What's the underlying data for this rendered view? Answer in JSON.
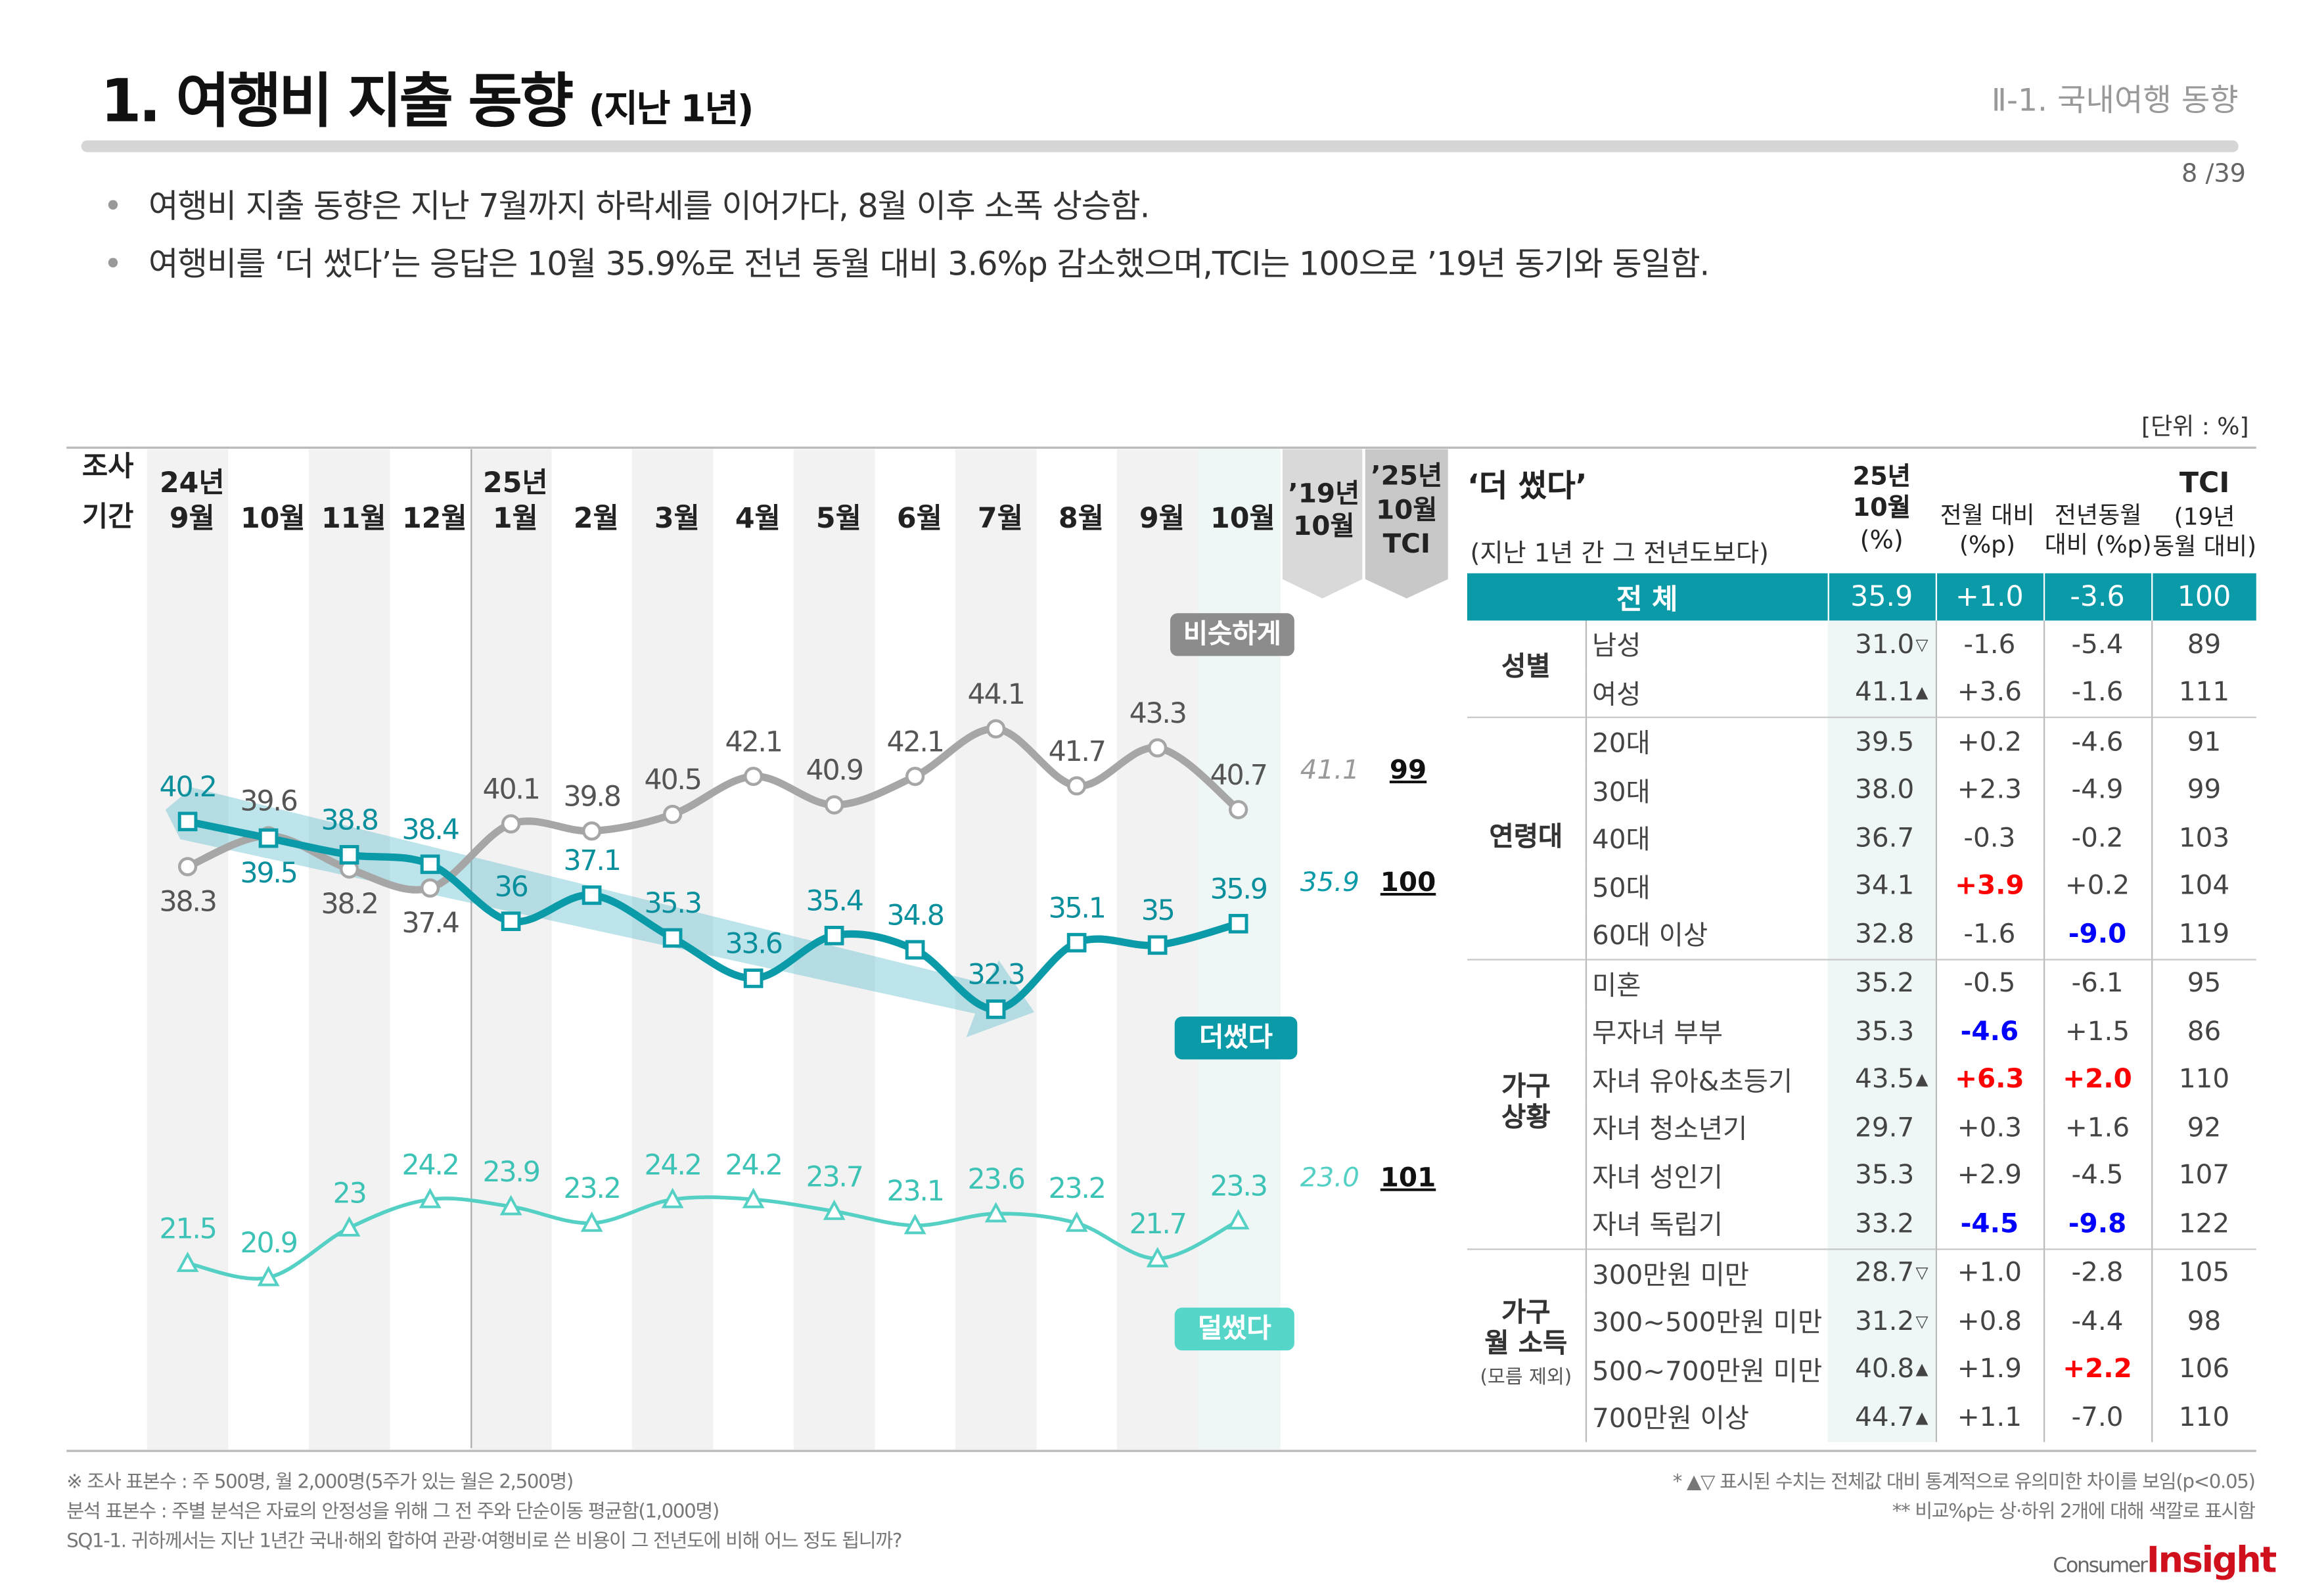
{
  "header": {
    "title": "1. 여행비 지출 동향",
    "title_sub": "(지난 1년)",
    "section": "Ⅱ-1. 국내여행 동향",
    "page": "8 /39"
  },
  "bullets": [
    "여행비 지출 동향은 지난 7월까지 하락세를 이어가다, 8월 이후 소폭 상승함.",
    "여행비를 ‘더 썼다’는 응답은 10월 35.9%로 전년 동월 대비 3.6%p 감소했으며,TCI는 100으로 ’19년 동기와 동일함."
  ],
  "unit": "[단위 : %]",
  "chart_data": {
    "type": "line",
    "period_label_1": "조사",
    "period_label_2": "기간",
    "year_labels": [
      {
        "col": 0,
        "text": "24년"
      },
      {
        "col": 4,
        "text": "25년"
      }
    ],
    "categories": [
      "9월",
      "10월",
      "11월",
      "12월",
      "1월",
      "2월",
      "3월",
      "4월",
      "5월",
      "6월",
      "7월",
      "8월",
      "9월",
      "10월"
    ],
    "series": [
      {
        "name": "비슷하게",
        "color": "#a6a6a6",
        "marker": "circle",
        "values": [
          38.3,
          39.6,
          38.2,
          37.4,
          40.1,
          39.8,
          40.5,
          42.1,
          40.9,
          42.1,
          44.1,
          41.7,
          43.3,
          40.7
        ],
        "ref_2019": "41.1",
        "tci": "99"
      },
      {
        "name": "더 썼다",
        "color": "#0a9aa8",
        "marker": "square",
        "values": [
          40.2,
          39.5,
          38.8,
          38.4,
          36.0,
          37.1,
          35.3,
          33.6,
          35.4,
          34.8,
          32.3,
          35.1,
          35.0,
          35.9
        ],
        "ref_2019": "35.9",
        "tci": "100"
      },
      {
        "name": "덜 썼다",
        "color": "#55d0c4",
        "marker": "triangle",
        "values": [
          21.5,
          20.9,
          23.0,
          24.2,
          23.9,
          23.2,
          24.2,
          24.2,
          23.7,
          23.1,
          23.6,
          23.2,
          21.7,
          23.3
        ],
        "ref_2019": "23.0",
        "tci": "101"
      }
    ],
    "badges": {
      "similar": "비슷하게",
      "more": "더썼다",
      "less": "덜썼다"
    },
    "col_2019": [
      "’19년",
      "10월"
    ],
    "col_tci": [
      "’25년",
      "10월",
      "TCI"
    ],
    "trend": "downward trend arrow from 24년 9월 to 25년 7월"
  },
  "table": {
    "title": "‘더 썼다’",
    "subtitle": "(지난 1년 간 그 전년도보다)",
    "col_pct": [
      "25년",
      "10월",
      "(%)"
    ],
    "col_mom": [
      "전월 대비",
      "(%p)"
    ],
    "col_yoy": [
      "전년동월",
      "대비 (%p)"
    ],
    "col_tci": [
      "TCI",
      "(19년",
      "동월 대비)"
    ],
    "total": {
      "label": "전  체",
      "pct": "35.9",
      "mom": "+1.0",
      "yoy": "-3.6",
      "tci": "100"
    },
    "groups": [
      {
        "name": "성별",
        "note": "",
        "rows": [
          {
            "label": "남성",
            "pct": "31.0",
            "mark": "▽",
            "mom": "-1.6",
            "yoy": "-5.4",
            "tci": "89"
          },
          {
            "label": "여성",
            "pct": "41.1",
            "mark": "▲",
            "mom": "+3.6",
            "yoy": "-1.6",
            "tci": "111"
          }
        ]
      },
      {
        "name": "연령대",
        "note": "",
        "rows": [
          {
            "label": "20대",
            "pct": "39.5",
            "mark": "",
            "mom": "+0.2",
            "yoy": "-4.6",
            "tci": "91"
          },
          {
            "label": "30대",
            "pct": "38.0",
            "mark": "",
            "mom": "+2.3",
            "yoy": "-4.9",
            "tci": "99"
          },
          {
            "label": "40대",
            "pct": "36.7",
            "mark": "",
            "mom": "-0.3",
            "yoy": "-0.2",
            "tci": "103"
          },
          {
            "label": "50대",
            "pct": "34.1",
            "mark": "",
            "mom": "+3.9",
            "mom_color": "#ff0000",
            "yoy": "+0.2",
            "tci": "104"
          },
          {
            "label": "60대 이상",
            "pct": "32.8",
            "mark": "",
            "mom": "-1.6",
            "yoy": "-9.0",
            "yoy_color": "#0000ff",
            "tci": "119"
          }
        ]
      },
      {
        "name": "가구\n상황",
        "note": "",
        "rows": [
          {
            "label": "미혼",
            "pct": "35.2",
            "mark": "",
            "mom": "-0.5",
            "yoy": "-6.1",
            "tci": "95"
          },
          {
            "label": "무자녀 부부",
            "pct": "35.3",
            "mark": "",
            "mom": "-4.6",
            "mom_color": "#0000ff",
            "yoy": "+1.5",
            "tci": "86"
          },
          {
            "label": "자녀 유아&초등기",
            "pct": "43.5",
            "mark": "▲",
            "mom": "+6.3",
            "mom_color": "#ff0000",
            "yoy": "+2.0",
            "yoy_color": "#ff0000",
            "tci": "110"
          },
          {
            "label": "자녀 청소년기",
            "pct": "29.7",
            "mark": "",
            "mom": "+0.3",
            "yoy": "+1.6",
            "tci": "92"
          },
          {
            "label": "자녀 성인기",
            "pct": "35.3",
            "mark": "",
            "mom": "+2.9",
            "yoy": "-4.5",
            "tci": "107"
          },
          {
            "label": "자녀 독립기",
            "pct": "33.2",
            "mark": "",
            "mom": "-4.5",
            "mom_color": "#0000ff",
            "yoy": "-9.8",
            "yoy_color": "#0000ff",
            "tci": "122"
          }
        ]
      },
      {
        "name": "가구\n월 소득",
        "note": "(모름 제외)",
        "rows": [
          {
            "label": "300만원 미만",
            "pct": "28.7",
            "mark": "▽",
            "mom": "+1.0",
            "yoy": "-2.8",
            "tci": "105"
          },
          {
            "label": "300~500만원 미만",
            "pct": "31.2",
            "mark": "▽",
            "mom": "+0.8",
            "yoy": "-4.4",
            "tci": "98"
          },
          {
            "label": "500~700만원 미만",
            "pct": "40.8",
            "mark": "▲",
            "mom": "+1.9",
            "yoy": "+2.2",
            "yoy_color": "#ff0000",
            "tci": "106"
          },
          {
            "label": "700만원 이상",
            "pct": "44.7",
            "mark": "▲",
            "mom": "+1.1",
            "yoy": "-7.0",
            "tci": "110"
          }
        ]
      }
    ]
  },
  "footer": {
    "left": [
      "※ 조사 표본수 : 주 500명, 월 2,000명(5주가 있는 월은 2,500명)",
      " 분석 표본수 : 주별 분석은 자료의 안정성을 위해 그 전 주와 단순이동 평균함(1,000명)",
      "SQ1-1. 귀하께서는 지난 1년간 국내·해외 합하여 관광·여행비로 쓴 비용이 그 전년도에 비해 어느 정도 됩니까?"
    ],
    "right": [
      "* ▲▽ 표시된 수치는 전체값 대비 통계적으로 유의미한 차이를 보임(p<0.05)",
      "** 비교%p는 상·하위 2개에 대해 색깔로 표시함"
    ],
    "logo_1": "Consumer",
    "logo_2": "Insight"
  }
}
